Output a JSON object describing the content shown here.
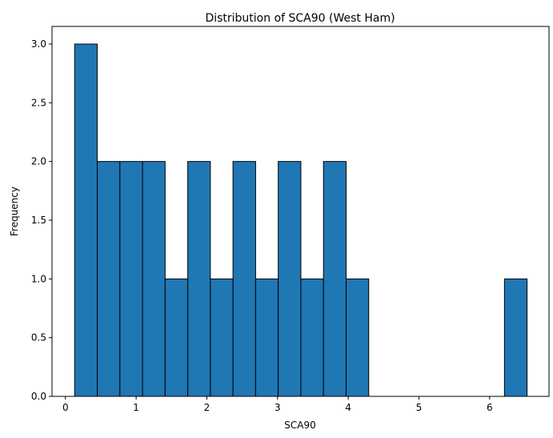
{
  "chart_data": {
    "type": "bar",
    "title": "Distribution of SCA90 (West Ham)",
    "xlabel": "SCA90",
    "ylabel": "Frequency",
    "bar_color": "#1f77b4",
    "edge_color": "#000000",
    "bin_start": 0.13,
    "bin_width": 0.32,
    "counts": [
      3,
      2,
      2,
      2,
      1,
      2,
      1,
      2,
      1,
      2,
      1,
      2,
      1,
      0,
      0,
      0,
      0,
      0,
      0,
      1
    ],
    "xlim": [
      -0.19,
      6.84
    ],
    "ylim": [
      0,
      3.15
    ],
    "xticks": [
      0,
      1,
      2,
      3,
      4,
      5,
      6
    ],
    "xtick_labels": [
      "0",
      "1",
      "2",
      "3",
      "4",
      "5",
      "6"
    ],
    "yticks": [
      0,
      0.5,
      1,
      1.5,
      2,
      2.5,
      3
    ],
    "ytick_labels": [
      "0.0",
      "0.5",
      "1.0",
      "1.5",
      "2.0",
      "2.5",
      "3.0"
    ],
    "grid": false
  }
}
